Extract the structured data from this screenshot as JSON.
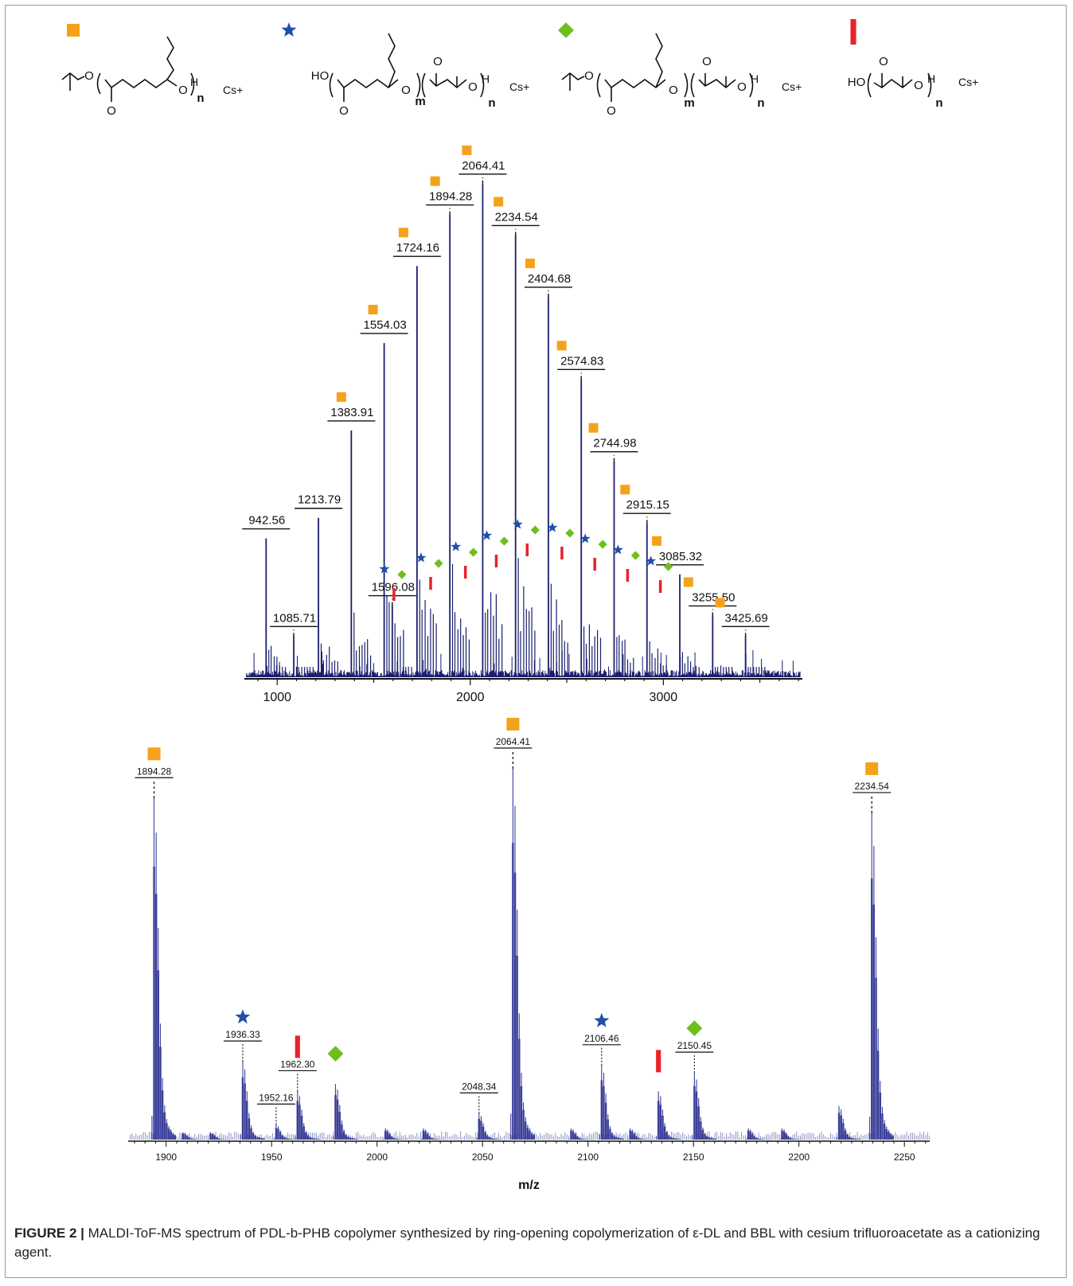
{
  "legend": [
    {
      "series": "square",
      "shape": "square",
      "color": "#f5a21b",
      "ion": "Cs+",
      "subscripts": [
        "n"
      ]
    },
    {
      "series": "star",
      "shape": "star",
      "color": "#1f4fa8",
      "ion": "Cs+",
      "subscripts": [
        "m",
        "n"
      ],
      "end_group": "HO"
    },
    {
      "series": "diamond",
      "shape": "diamond",
      "color": "#6dbf1c",
      "ion": "Cs+",
      "subscripts": [
        "m",
        "n"
      ]
    },
    {
      "series": "bar",
      "shape": "bar",
      "color": "#e8232a",
      "ion": "Cs+",
      "subscripts": [
        "n"
      ],
      "end_group": "HO"
    }
  ],
  "structure_atoms": {
    "O": "O",
    "H": "H"
  },
  "chart_data": [
    {
      "type": "bar",
      "panel": "overview",
      "xlabel": "",
      "ylabel": "",
      "xlim": [
        830,
        3720
      ],
      "ylim": [
        0,
        100
      ],
      "xticks": [
        1000,
        2000,
        3000
      ],
      "grid": false,
      "line_color": "#1a1f6e",
      "labeled_peaks": [
        {
          "x": 942.56,
          "y": 27,
          "label": "942.56",
          "style": "solid",
          "marker": null
        },
        {
          "x": 1085.71,
          "y": 8,
          "label": "1085.71",
          "style": "dashed",
          "marker": null
        },
        {
          "x": 1213.79,
          "y": 31,
          "label": "1213.79",
          "style": "solid",
          "marker": null
        },
        {
          "x": 1383.91,
          "y": 48,
          "label": "1383.91",
          "style": "solid",
          "marker": "square"
        },
        {
          "x": 1554.03,
          "y": 65,
          "label": "1554.03",
          "style": "solid",
          "marker": "square"
        },
        {
          "x": 1596.08,
          "y": 14,
          "label": "1596.08",
          "style": "dashed",
          "marker": null
        },
        {
          "x": 1724.16,
          "y": 80,
          "label": "1724.16",
          "style": "solid",
          "marker": "square"
        },
        {
          "x": 1894.28,
          "y": 90,
          "label": "1894.28",
          "style": "dashed",
          "marker": "square"
        },
        {
          "x": 2064.41,
          "y": 96,
          "label": "2064.41",
          "style": "dashed",
          "marker": "square"
        },
        {
          "x": 2234.54,
          "y": 86,
          "label": "2234.54",
          "style": "dashed",
          "marker": "square"
        },
        {
          "x": 2404.68,
          "y": 74,
          "label": "2404.68",
          "style": "dashed",
          "marker": "square"
        },
        {
          "x": 2574.83,
          "y": 58,
          "label": "2574.83",
          "style": "dashed",
          "marker": "square"
        },
        {
          "x": 2744.98,
          "y": 42,
          "label": "2744.98",
          "style": "dashed",
          "marker": "square"
        },
        {
          "x": 2915.15,
          "y": 30,
          "label": "2915.15",
          "style": "dashed",
          "marker": "square"
        },
        {
          "x": 3085.32,
          "y": 20,
          "label": "3085.32",
          "style": "solid",
          "marker": "square"
        },
        {
          "x": 3255.5,
          "y": 12,
          "label": "3255.50",
          "style": "dashed",
          "marker": "square"
        },
        {
          "x": 3425.69,
          "y": 8,
          "label": "3425.69",
          "style": "dashed",
          "marker": "square"
        }
      ],
      "minor_markers": [
        {
          "x": 1580,
          "star": 0,
          "diamond": 1,
          "bar": 2
        },
        {
          "x": 1770,
          "star": 0,
          "diamond": 1,
          "bar": 2
        },
        {
          "x": 1950,
          "star": 0,
          "diamond": 1,
          "bar": 2
        },
        {
          "x": 2110,
          "star": 0,
          "diamond": 1,
          "bar": 2
        },
        {
          "x": 2270,
          "star": 0,
          "diamond": 1,
          "bar": 2
        },
        {
          "x": 2450,
          "star": 0,
          "diamond": 1,
          "bar": 2
        },
        {
          "x": 2620,
          "star": 0,
          "diamond": 1,
          "bar": 2
        },
        {
          "x": 2790,
          "star": 0,
          "diamond": 1,
          "bar": 2
        },
        {
          "x": 2960,
          "star": 0,
          "diamond": 1,
          "bar": 2
        }
      ]
    },
    {
      "type": "bar",
      "panel": "zoom",
      "xlabel": "m/z",
      "ylabel": "",
      "xlim": [
        1882,
        2262
      ],
      "ylim": [
        0,
        100
      ],
      "xticks": [
        1900,
        1950,
        2000,
        2050,
        2100,
        2150,
        2200,
        2250
      ],
      "grid": false,
      "line_color": "#3b3f9a",
      "fill_color": "#8f94c9",
      "peaks": [
        {
          "x": 1894.28,
          "y": 92,
          "label": "1894.28",
          "marker": "square"
        },
        {
          "x": 1936.33,
          "y": 21,
          "label": "1936.33",
          "marker": "star"
        },
        {
          "x": 1952.16,
          "y": 4,
          "label": "1952.16",
          "marker": null
        },
        {
          "x": 1962.3,
          "y": 13,
          "label": "1962.30",
          "marker": "bar"
        },
        {
          "x": 1980.3,
          "y": 15,
          "label": "",
          "marker": "diamond"
        },
        {
          "x": 2048.34,
          "y": 7,
          "label": "2048.34",
          "marker": null
        },
        {
          "x": 2064.41,
          "y": 100,
          "label": "2064.41",
          "marker": "square"
        },
        {
          "x": 2106.46,
          "y": 20,
          "label": "2106.46",
          "marker": "star"
        },
        {
          "x": 2133.4,
          "y": 13,
          "label": "",
          "marker": "bar"
        },
        {
          "x": 2150.45,
          "y": 18,
          "label": "2150.45",
          "marker": "diamond"
        },
        {
          "x": 2234.54,
          "y": 88,
          "label": "2234.54",
          "marker": "square"
        }
      ],
      "minor_peaks": [
        {
          "x": 2004,
          "y": 3
        },
        {
          "x": 2022,
          "y": 3
        },
        {
          "x": 2092,
          "y": 3
        },
        {
          "x": 2120,
          "y": 3
        },
        {
          "x": 2176,
          "y": 3
        },
        {
          "x": 2192,
          "y": 3
        },
        {
          "x": 2219,
          "y": 9
        },
        {
          "x": 1908,
          "y": 2
        },
        {
          "x": 1921,
          "y": 2
        }
      ]
    }
  ],
  "caption": {
    "label": "FIGURE 2 |",
    "text": "MALDI-ToF-MS spectrum of PDL-b-PHB copolymer synthesized by ring-opening copolymerization of ε-DL and BBL with cesium trifluoroacetate as a cationizing agent."
  }
}
